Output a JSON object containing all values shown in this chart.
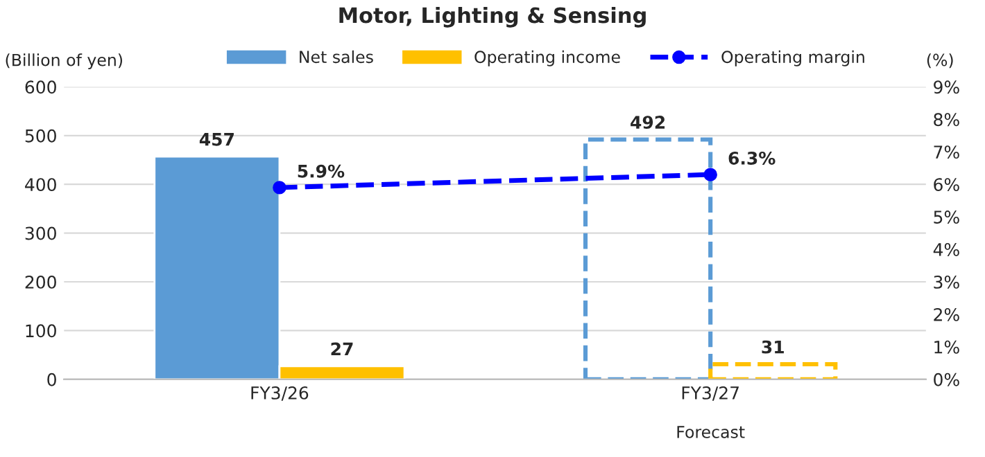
{
  "chart_data": {
    "type": "bar",
    "title": "Motor, Lighting & Sensing",
    "ylabel": "(Billion of yen)",
    "y2label": "(%)",
    "categories": [
      "FY3/26",
      "FY3/27"
    ],
    "series": [
      {
        "name": "Net sales",
        "color": "#5b9bd5",
        "values": [
          457,
          492
        ],
        "value_labels": [
          "457",
          "492"
        ],
        "line_style": [
          "solid",
          "dashed"
        ]
      },
      {
        "name": "Operating income",
        "color": "#ffc000",
        "values": [
          27,
          31
        ],
        "value_labels": [
          "27",
          "31"
        ],
        "line_style": [
          "solid",
          "dashed"
        ]
      },
      {
        "name": "Operating margin",
        "type": "line",
        "axis": "y2",
        "color": "#0000ff",
        "values": [
          5.9,
          6.3
        ],
        "value_labels": [
          "5.9%",
          "6.3%"
        ],
        "marker": "circle",
        "line_style": "dashed"
      }
    ],
    "ylim": [
      0,
      600
    ],
    "yticks": [
      0,
      100,
      200,
      300,
      400,
      500,
      600
    ],
    "y2lim": [
      0,
      9
    ],
    "y2ticks": [
      {
        "value": 0,
        "label": "0%"
      },
      {
        "value": 1,
        "label": "1%"
      },
      {
        "value": 2,
        "label": "2%"
      },
      {
        "value": 3,
        "label": "3%"
      },
      {
        "value": 4,
        "label": "4%"
      },
      {
        "value": 5,
        "label": "5%"
      },
      {
        "value": 6,
        "label": "6%"
      },
      {
        "value": 7,
        "label": "7%"
      },
      {
        "value": 8,
        "label": "8%"
      },
      {
        "value": 9,
        "label": "9%"
      }
    ],
    "annotations": [
      "Forecast"
    ],
    "grid": "y",
    "legend": "top"
  }
}
